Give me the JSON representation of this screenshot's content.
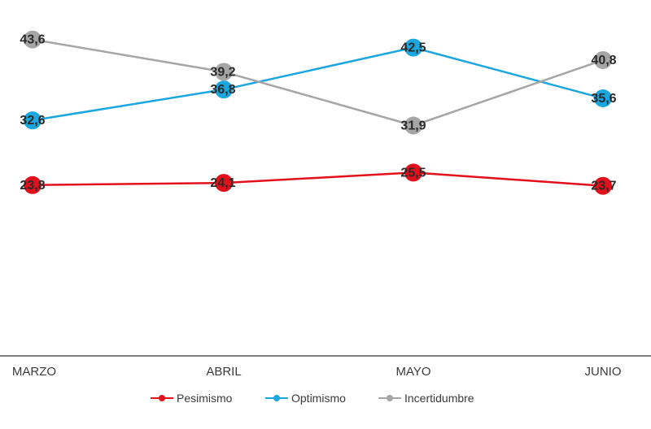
{
  "chart_data": {
    "type": "line",
    "categories": [
      "MARZO",
      "ABRIL",
      "MAYO",
      "JUNIO"
    ],
    "series": [
      {
        "name": "Pesimismo",
        "color": "#e3101b",
        "values": [
          23.8,
          24.1,
          25.5,
          23.7
        ],
        "labels": [
          "23,8",
          "24,1",
          "25,5",
          "23,7"
        ]
      },
      {
        "name": "Optimismo",
        "color": "#1aa7e0",
        "values": [
          32.6,
          36.8,
          42.5,
          35.6
        ],
        "labels": [
          "32,6",
          "36,8",
          "42,5",
          "35,6"
        ]
      },
      {
        "name": "Incertidumbre",
        "color": "#a6a6a6",
        "values": [
          43.6,
          39.2,
          31.9,
          40.8
        ],
        "labels": [
          "43,6",
          "39,2",
          "31,9",
          "40,8"
        ]
      }
    ],
    "ylim": [
      0,
      48
    ],
    "grid": false,
    "legend": "bottom-center",
    "axis_color": "#555555"
  }
}
